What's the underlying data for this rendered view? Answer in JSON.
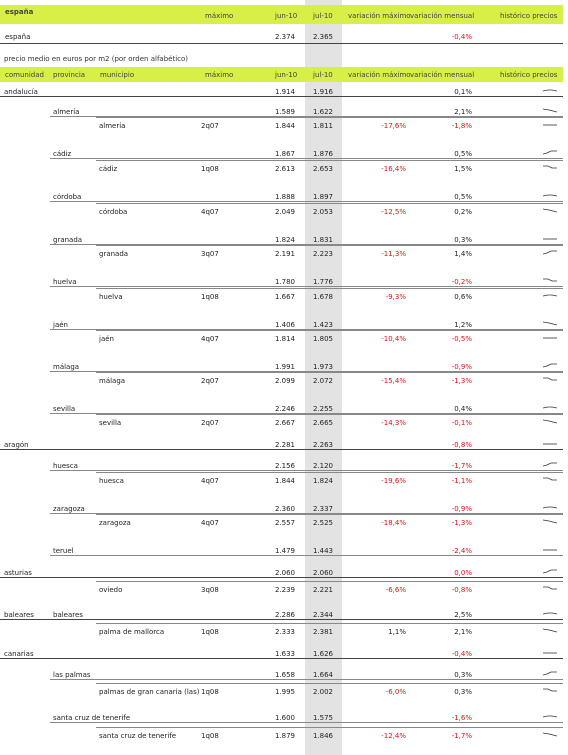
{
  "header": {
    "title": "españa",
    "col_max": "máximo",
    "col_jun": "jun-10",
    "col_jul": "jul-10",
    "col_var_max": "variación máximo",
    "col_var_mens": "variación mensual",
    "col_hist": "histórico precios"
  },
  "summary": {
    "label": "españa",
    "jun": "2.374",
    "jul": "2.365",
    "var_mens": "-0,4%",
    "var_mens_negative": true
  },
  "caption": "precio medio en euros por m2 (por orden alfabético)",
  "table_header": {
    "comunidad": "comunidad",
    "provincia": "provincia",
    "municipio": "municipio",
    "max": "máximo",
    "jun": "jun-10",
    "jul": "jul-10",
    "var_max": "variación máximo",
    "var_mens": "variación mensual",
    "hist": "histórico precios"
  },
  "rows": [
    {
      "level": "comunidad",
      "name": "andalucía",
      "jun": "1.914",
      "jul": "1.916",
      "var_max": "",
      "var_mens": "0,1%",
      "neg_max": false,
      "neg_mens": false,
      "max": ""
    },
    {
      "level": "provincia",
      "name": "almería",
      "jun": "1.589",
      "jul": "1.622",
      "var_max": "",
      "var_mens": "2,1%",
      "neg_max": false,
      "neg_mens": false,
      "max": ""
    },
    {
      "level": "municipio",
      "name": "almería",
      "max": "2q07",
      "jun": "1.844",
      "jul": "1.811",
      "var_max": "-17,6%",
      "var_mens": "-1,8%",
      "neg_max": true,
      "neg_mens": true
    },
    {
      "level": "provincia",
      "name": "cádiz",
      "jun": "1.867",
      "jul": "1.876",
      "var_max": "",
      "var_mens": "0,5%",
      "neg_max": false,
      "neg_mens": false,
      "max": ""
    },
    {
      "level": "municipio",
      "name": "cádiz",
      "max": "1q08",
      "jun": "2.613",
      "jul": "2.653",
      "var_max": "-16,4%",
      "var_mens": "1,5%",
      "neg_max": true,
      "neg_mens": false
    },
    {
      "level": "provincia",
      "name": "córdoba",
      "jun": "1.888",
      "jul": "1.897",
      "var_max": "",
      "var_mens": "0,5%",
      "neg_max": false,
      "neg_mens": false,
      "max": ""
    },
    {
      "level": "municipio",
      "name": "córdoba",
      "max": "4q07",
      "jun": "2.049",
      "jul": "2.053",
      "var_max": "-12,5%",
      "var_mens": "0,2%",
      "neg_max": true,
      "neg_mens": false
    },
    {
      "level": "provincia",
      "name": "granada",
      "jun": "1.824",
      "jul": "1.831",
      "var_max": "",
      "var_mens": "0,3%",
      "neg_max": false,
      "neg_mens": false,
      "max": ""
    },
    {
      "level": "municipio",
      "name": "granada",
      "max": "3q07",
      "jun": "2.191",
      "jul": "2.223",
      "var_max": "-11,3%",
      "var_mens": "1,4%",
      "neg_max": true,
      "neg_mens": false
    },
    {
      "level": "provincia",
      "name": "huelva",
      "jun": "1.780",
      "jul": "1.776",
      "var_max": "",
      "var_mens": "-0,2%",
      "neg_max": false,
      "neg_mens": true,
      "max": ""
    },
    {
      "level": "municipio",
      "name": "huelva",
      "max": "1q08",
      "jun": "1.667",
      "jul": "1.678",
      "var_max": "-9,3%",
      "var_mens": "0,6%",
      "neg_max": true,
      "neg_mens": false
    },
    {
      "level": "provincia",
      "name": "jaén",
      "jun": "1.406",
      "jul": "1.423",
      "var_max": "",
      "var_mens": "1,2%",
      "neg_max": false,
      "neg_mens": false,
      "max": ""
    },
    {
      "level": "municipio",
      "name": "jaén",
      "max": "4q07",
      "jun": "1.814",
      "jul": "1.805",
      "var_max": "-10,4%",
      "var_mens": "-0,5%",
      "neg_max": true,
      "neg_mens": true
    },
    {
      "level": "provincia",
      "name": "málaga",
      "jun": "1.991",
      "jul": "1.973",
      "var_max": "",
      "var_mens": "-0,9%",
      "neg_max": false,
      "neg_mens": true,
      "max": ""
    },
    {
      "level": "municipio",
      "name": "málaga",
      "max": "2q07",
      "jun": "2.099",
      "jul": "2.072",
      "var_max": "-15,4%",
      "var_mens": "-1,3%",
      "neg_max": true,
      "neg_mens": true
    },
    {
      "level": "provincia",
      "name": "sevilla",
      "jun": "2.246",
      "jul": "2.255",
      "var_max": "",
      "var_mens": "0,4%",
      "neg_max": false,
      "neg_mens": false,
      "max": ""
    },
    {
      "level": "municipio",
      "name": "sevilla",
      "max": "2q07",
      "jun": "2.667",
      "jul": "2.665",
      "var_max": "-14,3%",
      "var_mens": "-0,1%",
      "neg_max": true,
      "neg_mens": true
    },
    {
      "level": "comunidad",
      "name": "aragón",
      "jun": "2.281",
      "jul": "2.263",
      "var_max": "",
      "var_mens": "-0,8%",
      "neg_max": false,
      "neg_mens": true,
      "max": ""
    },
    {
      "level": "provincia",
      "name": "huesca",
      "jun": "2.156",
      "jul": "2.120",
      "var_max": "",
      "var_mens": "-1,7%",
      "neg_max": false,
      "neg_mens": true,
      "max": ""
    },
    {
      "level": "municipio",
      "name": "huesca",
      "max": "4q07",
      "jun": "1.844",
      "jul": "1.824",
      "var_max": "-19,6%",
      "var_mens": "-1,1%",
      "neg_max": true,
      "neg_mens": true
    },
    {
      "level": "provincia",
      "name": "zaragoza",
      "jun": "2.360",
      "jul": "2.337",
      "var_max": "",
      "var_mens": "-0,9%",
      "neg_max": false,
      "neg_mens": true,
      "max": ""
    },
    {
      "level": "municipio",
      "name": "zaragoza",
      "max": "4q07",
      "jun": "2.557",
      "jul": "2.525",
      "var_max": "-18,4%",
      "var_mens": "-1,3%",
      "neg_max": true,
      "neg_mens": true
    },
    {
      "level": "provincia",
      "name": "teruel",
      "jun": "1.479",
      "jul": "1.443",
      "var_max": "",
      "var_mens": "-2,4%",
      "neg_max": false,
      "neg_mens": true,
      "max": ""
    },
    {
      "level": "comunidad",
      "name": "asturias",
      "jun": "2.060",
      "jul": "2.060",
      "var_max": "",
      "var_mens": "0,0%",
      "neg_max": false,
      "neg_mens": true,
      "max": ""
    },
    {
      "level": "municipio",
      "name": "oviedo",
      "max": "3q08",
      "jun": "2.239",
      "jul": "2.221",
      "var_max": "-6,6%",
      "var_mens": "-0,8%",
      "neg_max": true,
      "neg_mens": true
    },
    {
      "level": "comunidad",
      "name": "baleares",
      "prov": "baleares",
      "jun": "2.286",
      "jul": "2.344",
      "var_max": "",
      "var_mens": "2,5%",
      "neg_max": false,
      "neg_mens": false,
      "max": ""
    },
    {
      "level": "municipio",
      "name": "palma de mallorca",
      "max": "1q08",
      "jun": "2.333",
      "jul": "2.381",
      "var_max": "1,1%",
      "var_mens": "2,1%",
      "neg_max": false,
      "neg_mens": false
    },
    {
      "level": "comunidad",
      "name": "canarias",
      "jun": "1.633",
      "jul": "1.626",
      "var_max": "",
      "var_mens": "-0,4%",
      "neg_max": false,
      "neg_mens": true,
      "max": ""
    },
    {
      "level": "provincia",
      "name": "las palmas",
      "jun": "1.658",
      "jul": "1.664",
      "var_max": "",
      "var_mens": "0,3%",
      "neg_max": false,
      "neg_mens": false,
      "max": ""
    },
    {
      "level": "municipio",
      "name": "palmas de gran canaria (las)",
      "max": "1q08",
      "jun": "1.995",
      "jul": "2.002",
      "var_max": "-6,0%",
      "var_mens": "0,3%",
      "neg_max": true,
      "neg_mens": false
    },
    {
      "level": "provincia",
      "name": "santa cruz de tenerife",
      "jun": "1.600",
      "jul": "1.575",
      "var_max": "",
      "var_mens": "-1,6%",
      "neg_max": false,
      "neg_mens": true,
      "max": ""
    },
    {
      "level": "municipio",
      "name": "santa cruz de tenerife",
      "max": "1q08",
      "jun": "1.879",
      "jul": "1.846",
      "var_max": "-12,4%",
      "var_mens": "-1,7%",
      "neg_max": true,
      "neg_mens": true
    }
  ]
}
